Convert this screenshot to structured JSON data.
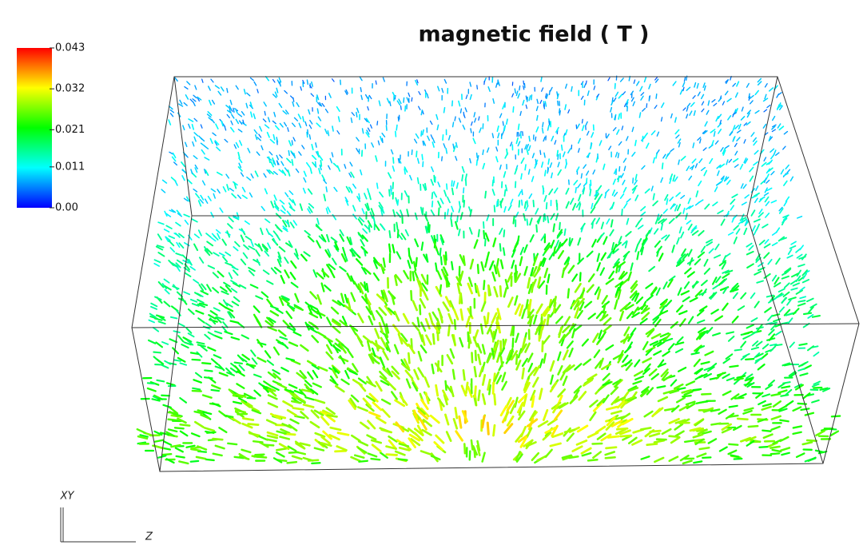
{
  "title": "magnetic field ( T )",
  "colorbar": {
    "range": [
      0,
      0.043
    ],
    "ticks": [
      0.043,
      0.032,
      0.021,
      0.011,
      {
        "value": 0,
        "label": "0.00"
      }
    ],
    "colors": [
      "#0000ff",
      "#00ffff",
      "#00ff00",
      "#ffff00",
      "#ff0000"
    ]
  },
  "axes": {
    "vertical": "XY",
    "horizontal": "Z"
  }
}
